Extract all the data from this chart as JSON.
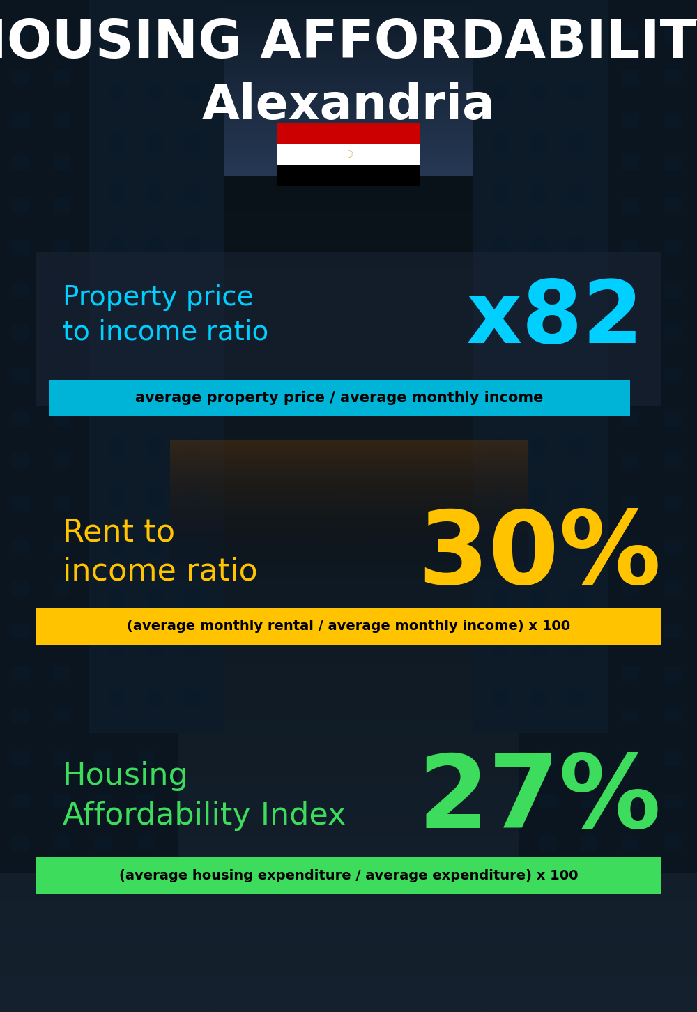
{
  "title_line1": "HOUSING AFFORDABILITY",
  "title_line2": "Alexandria",
  "section1_label": "Property price\nto income ratio",
  "section1_value": "x82",
  "section1_label_color": "#00cfff",
  "section1_value_color": "#00cfff",
  "section1_sublabel": "average property price / average monthly income",
  "section1_sublabel_bg": "#00b4d8",
  "section2_label": "Rent to\nincome ratio",
  "section2_value": "30%",
  "section2_label_color": "#ffc300",
  "section2_value_color": "#ffc300",
  "section2_sublabel": "(average monthly rental / average monthly income) x 100",
  "section2_sublabel_bg": "#ffc300",
  "section3_label": "Housing\nAffordability Index",
  "section3_value": "27%",
  "section3_label_color": "#3ddc5c",
  "section3_value_color": "#3ddc5c",
  "section3_sublabel": "(average housing expenditure / average expenditure) x 100",
  "section3_sublabel_bg": "#3ddc5c",
  "bg_color": "#08111e",
  "title_color": "#ffffff",
  "sublabel_text_color": "#000000",
  "flag_red": "#cc0001",
  "flag_white": "#ffffff",
  "flag_black": "#000000"
}
